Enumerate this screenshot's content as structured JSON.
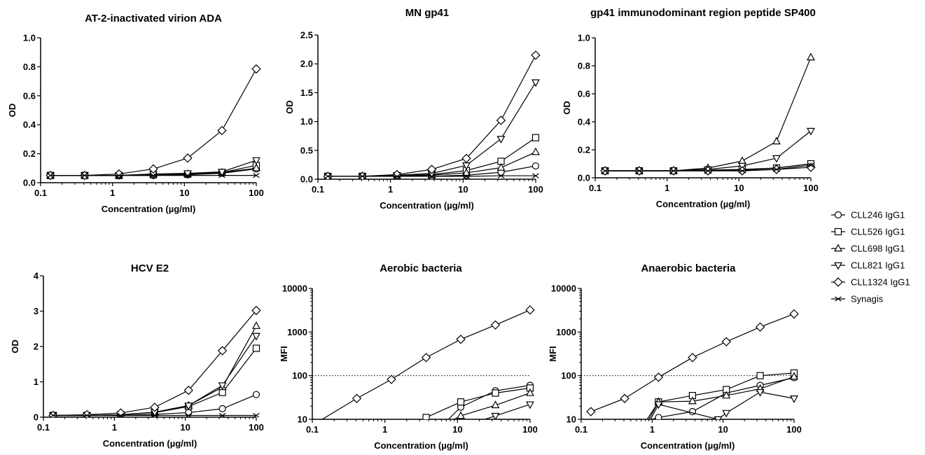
{
  "figure": {
    "legend": [
      {
        "name": "CLL246 IgG1",
        "marker": "circle"
      },
      {
        "name": "CLL526 IgG1",
        "marker": "square"
      },
      {
        "name": "CLL698 IgG1",
        "marker": "triangle-up"
      },
      {
        "name": "CLL821 IgG1",
        "marker": "triangle-down"
      },
      {
        "name": "CLL1324 IgG1",
        "marker": "diamond"
      },
      {
        "name": "Synagis",
        "marker": "cross"
      }
    ],
    "legend_position": "right-middle",
    "line_color": "#000000"
  },
  "chart_data": [
    {
      "type": "line",
      "title": "AT-2-inactivated virion ADA",
      "xlabel": "Concentration (µg/ml)",
      "ylabel": "OD",
      "xscale": "log",
      "xlim": [
        0.1,
        100
      ],
      "xticks": [
        "0.1",
        "1",
        "10",
        "100"
      ],
      "yscale": "linear",
      "ylim": [
        0,
        1.0
      ],
      "yticks": [
        "0.0",
        "0.2",
        "0.4",
        "0.6",
        "0.8",
        "1.0"
      ],
      "x": [
        0.137,
        0.41,
        1.23,
        3.7,
        11.1,
        33.3,
        100
      ],
      "series": [
        {
          "name": "CLL246 IgG1",
          "values": [
            0.05,
            0.05,
            0.05,
            0.05,
            0.055,
            0.065,
            0.095
          ]
        },
        {
          "name": "CLL526 IgG1",
          "values": [
            0.05,
            0.05,
            0.05,
            0.055,
            0.06,
            0.07,
            0.12
          ]
        },
        {
          "name": "CLL698 IgG1",
          "values": [
            0.05,
            0.05,
            0.05,
            0.06,
            0.06,
            0.07,
            0.1
          ]
        },
        {
          "name": "CLL821 IgG1",
          "values": [
            0.05,
            0.05,
            0.05,
            0.06,
            0.065,
            0.075,
            0.155
          ]
        },
        {
          "name": "CLL1324 IgG1",
          "values": [
            0.05,
            0.05,
            0.06,
            0.095,
            0.17,
            0.36,
            0.785
          ]
        },
        {
          "name": "Synagis",
          "values": [
            0.05,
            0.05,
            0.05,
            0.05,
            0.05,
            0.05,
            0.05
          ]
        }
      ]
    },
    {
      "type": "line",
      "title": "MN gp41",
      "xlabel": "Concentration (µg/ml)",
      "ylabel": "OD",
      "xscale": "log",
      "xlim": [
        0.1,
        100
      ],
      "xticks": [
        "0.1",
        "1",
        "10",
        "100"
      ],
      "yscale": "linear",
      "ylim": [
        0,
        2.5
      ],
      "yticks": [
        "0.0",
        "0.5",
        "1.0",
        "1.5",
        "2.0",
        "2.5"
      ],
      "x": [
        0.137,
        0.41,
        1.23,
        3.7,
        11.1,
        33.3,
        100
      ],
      "series": [
        {
          "name": "CLL246 IgG1",
          "values": [
            0.05,
            0.05,
            0.05,
            0.05,
            0.07,
            0.12,
            0.23
          ]
        },
        {
          "name": "CLL526 IgG1",
          "values": [
            0.05,
            0.05,
            0.06,
            0.08,
            0.15,
            0.31,
            0.72
          ]
        },
        {
          "name": "CLL698 IgG1",
          "values": [
            0.05,
            0.05,
            0.05,
            0.07,
            0.11,
            0.2,
            0.47
          ]
        },
        {
          "name": "CLL821 IgG1",
          "values": [
            0.05,
            0.05,
            0.07,
            0.1,
            0.24,
            0.7,
            1.68
          ]
        },
        {
          "name": "CLL1324 IgG1",
          "values": [
            0.05,
            0.05,
            0.08,
            0.17,
            0.36,
            1.02,
            2.15
          ]
        },
        {
          "name": "Synagis",
          "values": [
            0.05,
            0.05,
            0.05,
            0.05,
            0.05,
            0.06,
            0.06
          ]
        }
      ]
    },
    {
      "type": "line",
      "title": "gp41 immunodominant region peptide SP400",
      "xlabel": "Concentration (µg/ml)",
      "ylabel": "OD",
      "xscale": "log",
      "xlim": [
        0.1,
        100
      ],
      "xticks": [
        "0.1",
        "1",
        "10",
        "100"
      ],
      "yscale": "linear",
      "ylim": [
        0,
        1.0
      ],
      "yticks": [
        "0.0",
        "0.2",
        "0.4",
        "0.6",
        "0.8",
        "1.0"
      ],
      "x": [
        0.137,
        0.41,
        1.23,
        3.7,
        11.1,
        33.3,
        100
      ],
      "series": [
        {
          "name": "CLL246 IgG1",
          "values": [
            0.05,
            0.05,
            0.05,
            0.05,
            0.055,
            0.07,
            0.1
          ]
        },
        {
          "name": "CLL526 IgG1",
          "values": [
            0.05,
            0.05,
            0.05,
            0.055,
            0.06,
            0.07,
            0.1
          ]
        },
        {
          "name": "CLL698 IgG1",
          "values": [
            0.05,
            0.05,
            0.05,
            0.07,
            0.12,
            0.26,
            0.86
          ]
        },
        {
          "name": "CLL821 IgG1",
          "values": [
            0.05,
            0.05,
            0.05,
            0.06,
            0.085,
            0.14,
            0.335
          ]
        },
        {
          "name": "CLL1324 IgG1",
          "values": [
            0.05,
            0.05,
            0.05,
            0.05,
            0.05,
            0.06,
            0.075
          ]
        },
        {
          "name": "Synagis",
          "values": [
            0.05,
            0.05,
            0.05,
            0.05,
            0.05,
            0.06,
            0.09
          ]
        }
      ]
    },
    {
      "type": "line",
      "title": "HCV E2",
      "xlabel": "Concentration (µg/ml)",
      "ylabel": "OD",
      "xscale": "log",
      "xlim": [
        0.1,
        100
      ],
      "xticks": [
        "0.1",
        "1",
        "10",
        "100"
      ],
      "yscale": "linear",
      "ylim": [
        0,
        4
      ],
      "yticks": [
        "0",
        "1",
        "2",
        "3",
        "4"
      ],
      "x": [
        0.137,
        0.41,
        1.23,
        3.7,
        11.1,
        33.3,
        100
      ],
      "series": [
        {
          "name": "CLL246 IgG1",
          "values": [
            0.05,
            0.05,
            0.05,
            0.08,
            0.13,
            0.24,
            0.64
          ]
        },
        {
          "name": "CLL526 IgG1",
          "values": [
            0.05,
            0.05,
            0.07,
            0.13,
            0.3,
            0.7,
            1.95
          ]
        },
        {
          "name": "CLL698 IgG1",
          "values": [
            0.05,
            0.05,
            0.07,
            0.14,
            0.33,
            0.85,
            2.58
          ]
        },
        {
          "name": "CLL821 IgG1",
          "values": [
            0.05,
            0.05,
            0.07,
            0.14,
            0.33,
            0.9,
            2.3
          ]
        },
        {
          "name": "CLL1324 IgG1",
          "values": [
            0.05,
            0.07,
            0.12,
            0.28,
            0.76,
            1.88,
            3.02
          ]
        },
        {
          "name": "Synagis",
          "values": [
            0.05,
            0.05,
            0.05,
            0.05,
            0.05,
            0.05,
            0.05
          ]
        }
      ]
    },
    {
      "type": "line",
      "title": "Aerobic bacteria",
      "xlabel": "Concentration (µg/ml)",
      "ylabel": "MFI",
      "xscale": "log",
      "xlim": [
        0.1,
        100
      ],
      "xticks": [
        "0.1",
        "1",
        "10",
        "100"
      ],
      "yscale": "log",
      "ylim": [
        10,
        10000
      ],
      "yticks": [
        "10",
        "100",
        "1000",
        "10000"
      ],
      "reference_line": {
        "y": 100,
        "style": "dotted"
      },
      "series": [
        {
          "name": "CLL246 IgG1",
          "x": [
            7.5,
            11.1,
            33.3,
            100
          ],
          "values": [
            10,
            19,
            45,
            60
          ]
        },
        {
          "name": "CLL526 IgG1",
          "x": [
            3.7,
            11.1,
            33.3,
            100
          ],
          "values": [
            11,
            25,
            40,
            52
          ]
        },
        {
          "name": "CLL698 IgG1",
          "x": [
            9.0,
            11.1,
            33.3,
            100
          ],
          "values": [
            10,
            12,
            21,
            40
          ]
        },
        {
          "name": "CLL821 IgG1",
          "x": [
            24.0,
            33.3,
            100
          ],
          "values": [
            10,
            12,
            22
          ]
        },
        {
          "name": "CLL1324 IgG1",
          "x": [
            0.137,
            0.41,
            1.23,
            3.7,
            11.1,
            33.3,
            100
          ],
          "values": [
            10,
            30,
            82,
            260,
            680,
            1450,
            3200
          ]
        }
      ]
    },
    {
      "type": "line",
      "title": "Anaerobic bacteria",
      "xlabel": "Concentration (µg/ml)",
      "ylabel": "MFI",
      "xscale": "log",
      "xlim": [
        0.1,
        100
      ],
      "xticks": [
        "0.1",
        "1",
        "10",
        "100"
      ],
      "yscale": "log",
      "ylim": [
        10,
        10000
      ],
      "yticks": [
        "10",
        "100",
        "1000",
        "10000"
      ],
      "reference_line": {
        "y": 100,
        "style": "dotted"
      },
      "series": [
        {
          "name": "CLL246 IgG1",
          "x": [
            1.0,
            1.23,
            3.7,
            11.1,
            33.3,
            100
          ],
          "values": [
            10,
            11,
            15,
            40,
            60,
            90
          ]
        },
        {
          "name": "CLL526 IgG1",
          "x": [
            0.9,
            1.23,
            3.7,
            11.1,
            33.3,
            100
          ],
          "values": [
            10,
            25,
            35,
            48,
            100,
            115
          ]
        },
        {
          "name": "CLL698 IgG1",
          "x": [
            0.85,
            1.23,
            3.7,
            11.1,
            33.3,
            100
          ],
          "values": [
            10,
            25,
            26,
            35,
            50,
            95
          ]
        },
        {
          "name": "CLL821 IgG1",
          "x": [
            0.95,
            1.23,
            8.5,
            11.1,
            33.3,
            100
          ],
          "values": [
            10,
            22,
            10,
            14,
            42,
            30
          ]
        },
        {
          "name": "CLL1324 IgG1",
          "x": [
            0.137,
            0.41,
            1.23,
            3.7,
            11.1,
            33.3,
            100
          ],
          "values": [
            15,
            30,
            92,
            260,
            600,
            1300,
            2600
          ]
        }
      ]
    }
  ]
}
